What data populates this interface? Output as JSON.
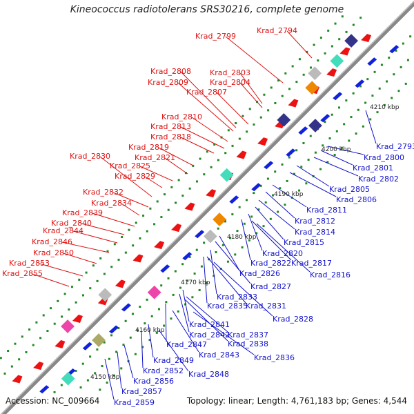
{
  "title": "Kineococcus radiotolerans SRS30216, complete genome",
  "footer": {
    "accession": "Accession: NC_009664",
    "summary": "Topology: linear; Length: 4,761,183 bp; Genes: 4,544"
  },
  "colors": {
    "forward_label": "#dd1111",
    "reverse_label": "#1111cc",
    "forward_gene": "#ee1111",
    "reverse_gene": "#1122dd",
    "backbone": "#888888",
    "tick_mark": "#228822",
    "cog_navy": "#333388",
    "cog_teal": "#44ddbb",
    "cog_orange": "#ee8800",
    "cog_grey": "#bbbbbb",
    "cog_pink": "#ee44aa",
    "cog_olive": "#aaaa66"
  },
  "scale_labels": [
    "4210 kbp",
    "4200 kbp",
    "4190 kbp",
    "4180 kbp",
    "4170 kbp",
    "4160 kbp",
    "4150 kbp"
  ],
  "forward_genes": [
    "Krad_2794",
    "Krad_2799",
    "Krad_2803",
    "Krad_2804",
    "Krad_2807",
    "Krad_2808",
    "Krad_2809",
    "Krad_2810",
    "Krad_2813",
    "Krad_2818",
    "Krad_2819",
    "Krad_2821",
    "Krad_2825",
    "Krad_2829",
    "Krad_2830",
    "Krad_2832",
    "Krad_2834",
    "Krad_2839",
    "Krad_2840",
    "Krad_2844",
    "Krad_2846",
    "Krad_2850",
    "Krad_2853",
    "Krad_2855"
  ],
  "reverse_genes": [
    "Krad_2793",
    "Krad_2800",
    "Krad_2801",
    "Krad_2802",
    "Krad_2805",
    "Krad_2806",
    "Krad_2811",
    "Krad_2812",
    "Krad_2814",
    "Krad_2815",
    "Krad_2820",
    "Krad_2822",
    "Krad_2817",
    "Krad_2816",
    "Krad_2826",
    "Krad_2827",
    "Krad_2833",
    "Krad_2835",
    "Krad_2831",
    "Krad_2828",
    "Krad_2841",
    "Krad_2842",
    "Krad_2837",
    "Krad_2838",
    "Krad_2847",
    "Krad_2843",
    "Krad_2836",
    "Krad_2849",
    "Krad_2852",
    "Krad_2848",
    "Krad_2856",
    "Krad_2857",
    "Krad_2859"
  ]
}
